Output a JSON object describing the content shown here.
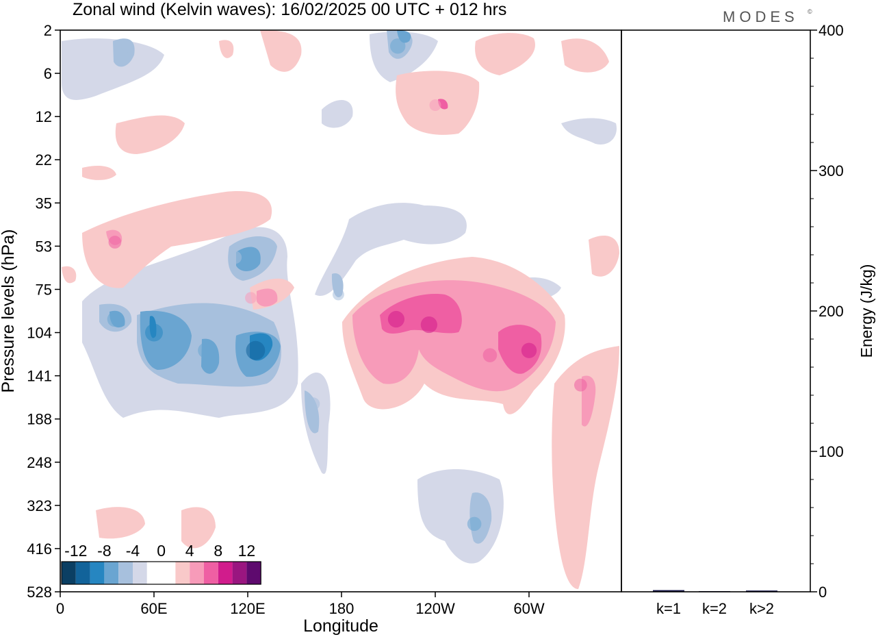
{
  "title": "Zonal wind (Kelvin waves):  16/02/2025  00 UTC  + 012 hrs",
  "brand": "MODES",
  "brand_mark": "©",
  "colors": {
    "neg": [
      "#0b3f63",
      "#12639a",
      "#2686c1",
      "#6aa5d1",
      "#a7c0dd",
      "#d4d8e8"
    ],
    "neutral": "#ffffff",
    "pos": [
      "#f9c9c9",
      "#f79bb9",
      "#ef5fa3",
      "#d11c8c",
      "#9a1680",
      "#5e0a6e"
    ],
    "bar": "#1c1c4e",
    "frame": "#000000"
  },
  "chart_data": [
    {
      "type": "heatmap",
      "title": "Zonal wind (Kelvin waves):  16/02/2025  00 UTC  + 012 hrs",
      "xlabel": "Longitude",
      "ylabel": "Pressure levels (hPa)",
      "x_ticks": [
        "0",
        "60E",
        "120E",
        "180",
        "120W",
        "60W"
      ],
      "y_ticks": [
        "2",
        "6",
        "12",
        "22",
        "35",
        "53",
        "75",
        "104",
        "141",
        "188",
        "248",
        "323",
        "416",
        "528"
      ],
      "colorbar": {
        "tick_labels": [
          "-12",
          "-8",
          "-4",
          "0",
          "4",
          "8",
          "12"
        ],
        "levels": [
          -14,
          -12,
          -10,
          -8,
          -6,
          -4,
          -2,
          2,
          4,
          6,
          8,
          10,
          12,
          14
        ]
      },
      "features": [
        {
          "x": 60,
          "y": 104,
          "value": -10
        },
        {
          "x": 35,
          "y": 94,
          "value": -8
        },
        {
          "x": 125,
          "y": 118,
          "value": -11
        },
        {
          "x": 93,
          "y": 118,
          "value": -8
        },
        {
          "x": 112,
          "y": 58,
          "value": -6
        },
        {
          "x": 43,
          "y": 3,
          "value": -6
        },
        {
          "x": 216,
          "y": 3,
          "value": -8
        },
        {
          "x": 162,
          "y": 170,
          "value": -6
        },
        {
          "x": 265,
          "y": 360,
          "value": -7
        },
        {
          "x": 178,
          "y": 78,
          "value": -5
        },
        {
          "x": 215,
          "y": 94,
          "value": 9
        },
        {
          "x": 236,
          "y": 98,
          "value": 9
        },
        {
          "x": 300,
          "y": 118,
          "value": 8
        },
        {
          "x": 275,
          "y": 122,
          "value": 7
        },
        {
          "x": 333,
          "y": 150,
          "value": 6
        },
        {
          "x": 35,
          "y": 51,
          "value": 6
        },
        {
          "x": 122,
          "y": 80,
          "value": 5
        },
        {
          "x": 240,
          "y": 10,
          "value": 5
        }
      ]
    },
    {
      "type": "bar",
      "ylabel": "Energy (J/kg)",
      "categories": [
        "k=1",
        "k=2",
        "k>2"
      ],
      "values": [
        1.2,
        0.2,
        0.9
      ],
      "ylim": [
        0,
        400
      ],
      "y_ticks": [
        "0",
        "100",
        "200",
        "300",
        "400"
      ]
    }
  ]
}
